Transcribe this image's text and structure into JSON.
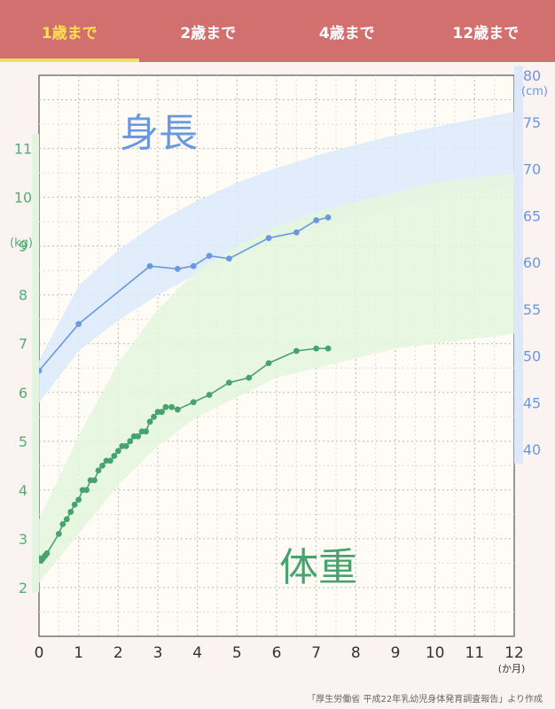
{
  "tabs": [
    {
      "label": "1歳まで",
      "active": true
    },
    {
      "label": "2歳まで",
      "active": false
    },
    {
      "label": "4歳まで",
      "active": false
    },
    {
      "label": "12歳まで",
      "active": false
    }
  ],
  "colors": {
    "header": "#d2706f",
    "active_tab": "#ffe14a",
    "height": "#6a98e0",
    "height_band": "#dceafb",
    "weight": "#46a36d",
    "weight_band": "#e4f6dd",
    "weight_axis": "#4fb070"
  },
  "source_note": "「厚生労働省 平成22年乳幼児身体発育調査報告」より作成",
  "chart_data": {
    "type": "line",
    "x_axis": {
      "range": [
        0,
        12
      ],
      "ticks": [
        "0",
        "1",
        "2",
        "3",
        "4",
        "5",
        "6",
        "7",
        "8",
        "9",
        "10",
        "11",
        "12"
      ],
      "unit": "(か月)"
    },
    "y_left": {
      "range": [
        1,
        12.5
      ],
      "ticks": [
        "2",
        "3",
        "4",
        "5",
        "6",
        "7",
        "8",
        "9",
        "10",
        "11"
      ],
      "unit": "(kg)"
    },
    "y_right": {
      "range": [
        20,
        80
      ],
      "ticks": [
        "40",
        "45",
        "50",
        "55",
        "60",
        "65",
        "70",
        "75",
        "80"
      ],
      "unit": "(cm)"
    },
    "grid": true,
    "series": [
      {
        "name": "身長",
        "axis": "right",
        "points": [
          [
            0.0,
            48.4
          ],
          [
            1.0,
            53.4
          ],
          [
            2.8,
            59.6
          ],
          [
            3.5,
            59.3
          ],
          [
            3.9,
            59.6
          ],
          [
            4.3,
            60.7
          ],
          [
            4.8,
            60.4
          ],
          [
            5.8,
            62.6
          ],
          [
            6.5,
            63.2
          ],
          [
            7.0,
            64.5
          ],
          [
            7.3,
            64.8
          ]
        ],
        "band": {
          "x": [
            0,
            1,
            2,
            3,
            4,
            5,
            6,
            7,
            8,
            9,
            10,
            11,
            12
          ],
          "low": [
            45,
            50.5,
            53.8,
            56.5,
            58.8,
            60.7,
            62.3,
            63.6,
            64.8,
            65.8,
            66.7,
            67.5,
            68.3
          ],
          "high": [
            49.5,
            57.5,
            61.3,
            64.3,
            66.6,
            68.5,
            70.1,
            71.4,
            72.6,
            73.6,
            74.5,
            75.3,
            76.1
          ]
        }
      },
      {
        "name": "体重",
        "axis": "left",
        "points": [
          [
            0.0,
            2.6
          ],
          [
            0.05,
            2.55
          ],
          [
            0.1,
            2.6
          ],
          [
            0.15,
            2.65
          ],
          [
            0.2,
            2.7
          ],
          [
            0.5,
            3.1
          ],
          [
            0.6,
            3.3
          ],
          [
            0.7,
            3.4
          ],
          [
            0.8,
            3.55
          ],
          [
            0.9,
            3.7
          ],
          [
            1.0,
            3.8
          ],
          [
            1.1,
            4.0
          ],
          [
            1.2,
            4.0
          ],
          [
            1.3,
            4.2
          ],
          [
            1.4,
            4.2
          ],
          [
            1.5,
            4.4
          ],
          [
            1.6,
            4.5
          ],
          [
            1.7,
            4.6
          ],
          [
            1.8,
            4.6
          ],
          [
            1.9,
            4.7
          ],
          [
            2.0,
            4.8
          ],
          [
            2.1,
            4.9
          ],
          [
            2.2,
            4.9
          ],
          [
            2.3,
            5.0
          ],
          [
            2.4,
            5.1
          ],
          [
            2.5,
            5.1
          ],
          [
            2.6,
            5.2
          ],
          [
            2.7,
            5.2
          ],
          [
            2.8,
            5.4
          ],
          [
            2.9,
            5.5
          ],
          [
            3.0,
            5.6
          ],
          [
            3.1,
            5.6
          ],
          [
            3.2,
            5.7
          ],
          [
            3.35,
            5.7
          ],
          [
            3.5,
            5.65
          ],
          [
            3.9,
            5.8
          ],
          [
            4.3,
            5.95
          ],
          [
            4.8,
            6.2
          ],
          [
            5.3,
            6.3
          ],
          [
            5.8,
            6.6
          ],
          [
            6.5,
            6.85
          ],
          [
            7.0,
            6.9
          ],
          [
            7.3,
            6.9
          ]
        ],
        "band": {
          "x": [
            0,
            1,
            2,
            3,
            4,
            5,
            6,
            7,
            8,
            9,
            10,
            11,
            12
          ],
          "low": [
            2.1,
            3.1,
            4.1,
            4.9,
            5.5,
            5.9,
            6.3,
            6.5,
            6.7,
            6.9,
            7.0,
            7.1,
            7.2
          ],
          "high": [
            3.4,
            5.1,
            6.6,
            7.7,
            8.5,
            9.0,
            9.4,
            9.7,
            9.9,
            10.1,
            10.3,
            10.4,
            10.5
          ]
        }
      }
    ]
  }
}
